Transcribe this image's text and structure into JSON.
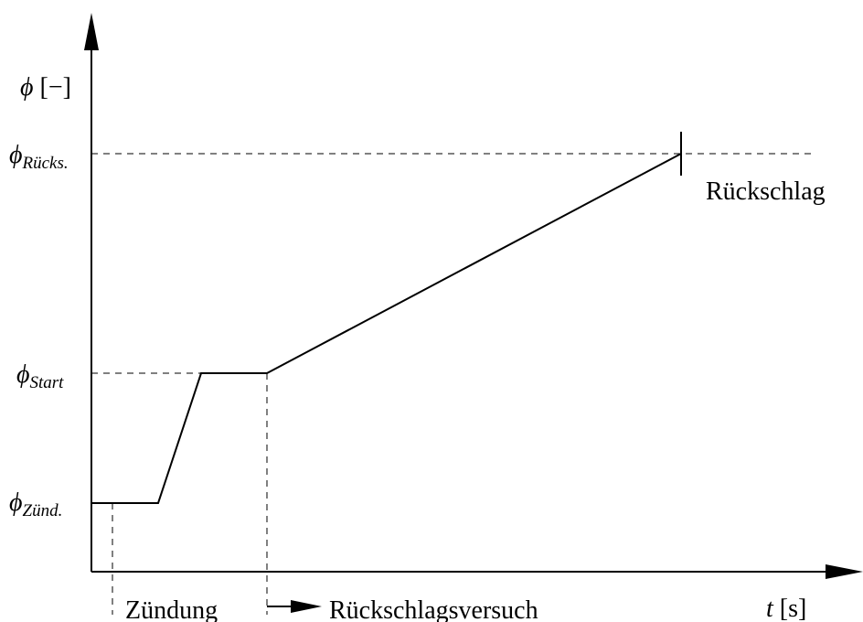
{
  "y_axis": {
    "symbol": "ϕ",
    "unit": "[−]"
  },
  "x_axis": {
    "symbol": "t",
    "unit": "[s]"
  },
  "levels": [
    {
      "symbol": "ϕ",
      "subscript": "Rücks."
    },
    {
      "symbol": "ϕ",
      "subscript": "Start"
    },
    {
      "symbol": "ϕ",
      "subscript": "Zünd."
    }
  ],
  "annotations": {
    "flashback": "Rückschlag",
    "ignition": "Zündung",
    "attempt": "Rückschlagsversuch"
  }
}
